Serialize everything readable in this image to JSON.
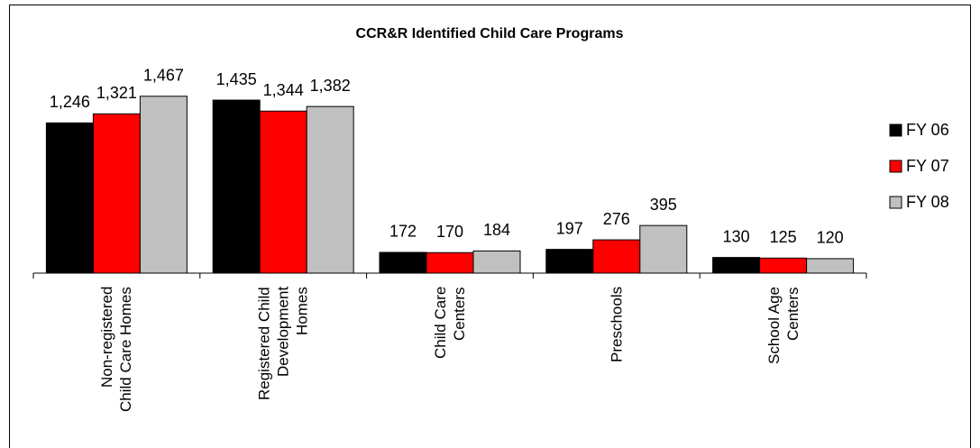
{
  "chart_data": {
    "type": "bar",
    "title": "CCR&R Identified Child Care Programs",
    "categories": [
      "Non-registered\nChild Care Homes",
      "Registered Child\nDevelopment\nHomes",
      "Child Care\nCenters",
      "Preschools",
      "School Age\nCenters"
    ],
    "series": [
      {
        "name": "FY 06",
        "color": "#000000",
        "values": [
          1246,
          1435,
          172,
          197,
          130
        ],
        "value_labels": [
          "1,246",
          "1,435",
          "172",
          "197",
          "130"
        ]
      },
      {
        "name": "FY 07",
        "color": "#ff0000",
        "values": [
          1321,
          1344,
          170,
          276,
          125
        ],
        "value_labels": [
          "1,321",
          "1,344",
          "170",
          "276",
          "125"
        ]
      },
      {
        "name": "FY 08",
        "color": "#c0c0c0",
        "values": [
          1467,
          1382,
          184,
          395,
          120
        ],
        "value_labels": [
          "1,467",
          "1,382",
          "184",
          "395",
          "120"
        ]
      }
    ],
    "ylim": [
      0,
      1600
    ],
    "legend": "right"
  }
}
